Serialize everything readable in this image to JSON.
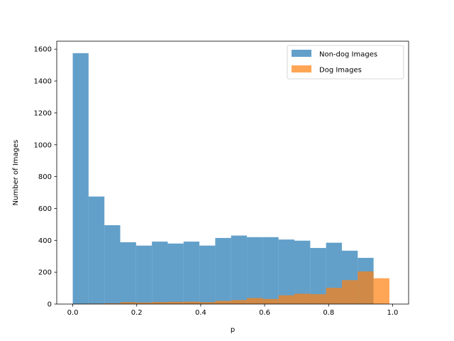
{
  "chart_data": {
    "type": "bar",
    "xlabel": "p",
    "ylabel": "Number of Images",
    "xlim": [
      -0.05,
      1.05
    ],
    "ylim": [
      0,
      1650
    ],
    "xticks": [
      "0.0",
      "0.2",
      "0.4",
      "0.6",
      "0.8",
      "1.0"
    ],
    "yticks": [
      "0",
      "200",
      "400",
      "600",
      "800",
      "1000",
      "1200",
      "1400",
      "1600"
    ],
    "legend_position": "top-right",
    "bin_edges": [
      0.0,
      0.0495,
      0.099,
      0.1485,
      0.198,
      0.2475,
      0.297,
      0.3465,
      0.396,
      0.4455,
      0.495,
      0.5445,
      0.594,
      0.6435,
      0.693,
      0.7425,
      0.792,
      0.8415,
      0.891,
      0.9405,
      0.99
    ],
    "series": [
      {
        "name": "Non-dog Images",
        "color": "#1f77b4",
        "values": [
          1575,
          675,
          495,
          388,
          367,
          392,
          380,
          392,
          367,
          415,
          430,
          420,
          420,
          405,
          398,
          352,
          385,
          335,
          290,
          0
        ]
      },
      {
        "name": "Dog Images",
        "color": "#ff7f0e",
        "values": [
          2,
          3,
          5,
          12,
          10,
          13,
          14,
          15,
          12,
          20,
          25,
          38,
          32,
          55,
          65,
          62,
          102,
          150,
          205,
          162
        ]
      }
    ]
  }
}
